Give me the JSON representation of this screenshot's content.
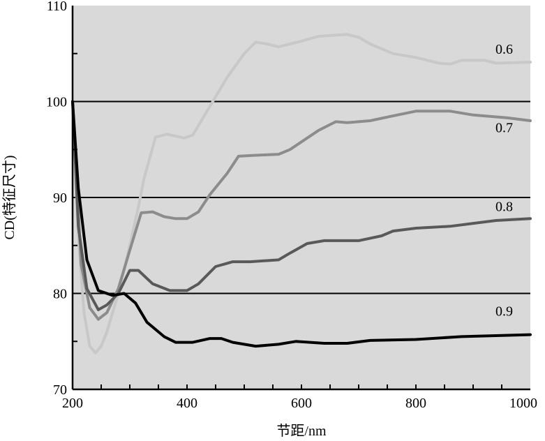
{
  "chart_data": {
    "type": "line",
    "title": "",
    "xlabel": "节距/nm",
    "ylabel": "CD(特征尺寸)",
    "xlim": [
      200,
      1000
    ],
    "ylim": [
      70,
      110
    ],
    "xticks": [
      200,
      400,
      600,
      800,
      1000
    ],
    "yticks": [
      70,
      80,
      90,
      100,
      110
    ],
    "grid": "horizontal at 80, 90, 100",
    "background": "#d9d9d9",
    "legend": "inline labels at right end of each curve",
    "series": [
      {
        "name": "0.6",
        "color": "#c8c8c8",
        "label_y": 105.5,
        "points": [
          [
            200,
            100
          ],
          [
            210,
            86
          ],
          [
            220,
            78
          ],
          [
            230,
            74.5
          ],
          [
            240,
            73.8
          ],
          [
            250,
            74.5
          ],
          [
            260,
            76
          ],
          [
            280,
            80
          ],
          [
            300,
            85
          ],
          [
            315,
            89
          ],
          [
            325,
            92
          ],
          [
            345,
            96.3
          ],
          [
            365,
            96.6
          ],
          [
            395,
            96.2
          ],
          [
            410,
            96.5
          ],
          [
            440,
            99.5
          ],
          [
            470,
            102.5
          ],
          [
            500,
            105
          ],
          [
            520,
            106.2
          ],
          [
            540,
            106
          ],
          [
            560,
            105.7
          ],
          [
            600,
            106.3
          ],
          [
            630,
            106.8
          ],
          [
            680,
            107
          ],
          [
            700,
            106.7
          ],
          [
            720,
            106
          ],
          [
            760,
            105
          ],
          [
            800,
            104.6
          ],
          [
            840,
            104
          ],
          [
            860,
            103.9
          ],
          [
            880,
            104.3
          ],
          [
            920,
            104.3
          ],
          [
            940,
            104
          ],
          [
            1000,
            104.1
          ]
        ]
      },
      {
        "name": "0.7",
        "color": "#8c8c8c",
        "label_y": 97.3,
        "points": [
          [
            200,
            100
          ],
          [
            215,
            83
          ],
          [
            230,
            78.5
          ],
          [
            245,
            77.3
          ],
          [
            260,
            78
          ],
          [
            280,
            80.5
          ],
          [
            300,
            84.5
          ],
          [
            320,
            88.4
          ],
          [
            340,
            88.5
          ],
          [
            360,
            88
          ],
          [
            380,
            87.8
          ],
          [
            400,
            87.8
          ],
          [
            420,
            88.5
          ],
          [
            440,
            90.3
          ],
          [
            470,
            92.5
          ],
          [
            490,
            94.3
          ],
          [
            520,
            94.4
          ],
          [
            560,
            94.5
          ],
          [
            580,
            95
          ],
          [
            600,
            95.8
          ],
          [
            630,
            97
          ],
          [
            660,
            97.9
          ],
          [
            680,
            97.8
          ],
          [
            720,
            98
          ],
          [
            760,
            98.5
          ],
          [
            800,
            99
          ],
          [
            860,
            99
          ],
          [
            900,
            98.6
          ],
          [
            960,
            98.3
          ],
          [
            1000,
            98
          ]
        ]
      },
      {
        "name": "0.8",
        "color": "#595959",
        "label_y": 89.1,
        "points": [
          [
            200,
            100
          ],
          [
            210,
            87
          ],
          [
            225,
            80.5
          ],
          [
            245,
            78.3
          ],
          [
            260,
            78.8
          ],
          [
            280,
            80
          ],
          [
            300,
            82.4
          ],
          [
            315,
            82.4
          ],
          [
            340,
            81
          ],
          [
            370,
            80.3
          ],
          [
            400,
            80.3
          ],
          [
            420,
            81
          ],
          [
            450,
            82.8
          ],
          [
            480,
            83.3
          ],
          [
            510,
            83.3
          ],
          [
            560,
            83.5
          ],
          [
            580,
            84.2
          ],
          [
            610,
            85.2
          ],
          [
            640,
            85.5
          ],
          [
            700,
            85.5
          ],
          [
            740,
            86
          ],
          [
            760,
            86.5
          ],
          [
            800,
            86.8
          ],
          [
            860,
            87
          ],
          [
            900,
            87.3
          ],
          [
            940,
            87.6
          ],
          [
            1000,
            87.8
          ]
        ]
      },
      {
        "name": "0.9",
        "color": "#000000",
        "label_y": 78.2,
        "points": [
          [
            200,
            100
          ],
          [
            210,
            91
          ],
          [
            225,
            83.5
          ],
          [
            245,
            80.3
          ],
          [
            270,
            79.8
          ],
          [
            290,
            80
          ],
          [
            310,
            79
          ],
          [
            330,
            77
          ],
          [
            360,
            75.5
          ],
          [
            380,
            74.9
          ],
          [
            410,
            74.9
          ],
          [
            440,
            75.3
          ],
          [
            460,
            75.3
          ],
          [
            480,
            74.9
          ],
          [
            520,
            74.5
          ],
          [
            560,
            74.7
          ],
          [
            590,
            75
          ],
          [
            640,
            74.8
          ],
          [
            680,
            74.8
          ],
          [
            720,
            75.1
          ],
          [
            800,
            75.2
          ],
          [
            880,
            75.5
          ],
          [
            1000,
            75.7
          ]
        ]
      }
    ]
  }
}
